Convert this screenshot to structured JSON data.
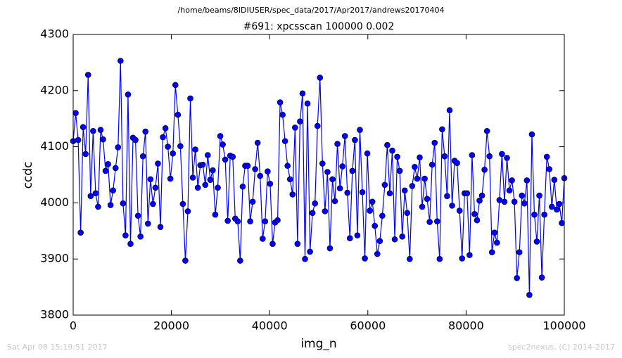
{
  "chart_data": {
    "type": "line",
    "title": "/home/beams/8IDIUSER/spec_data/2017/Apr2017/andrews20170404",
    "subtitle": "#691: xpcsscan 100000 0.002",
    "x_label": "img_n",
    "y_label": "ccdc",
    "footer_left": "Sat Apr 08 15:19:51 2017",
    "footer_right": "spec2nexus, (C) 2014-2017",
    "xlim": [
      0,
      100000
    ],
    "xticks": [
      0,
      20000,
      40000,
      60000,
      80000,
      100000
    ],
    "ylim": [
      3800,
      4300
    ],
    "yticks": [
      3800,
      3900,
      4000,
      4100,
      4200,
      4300
    ],
    "x": [
      0,
      508,
      1015,
      1523,
      2030,
      2538,
      3046,
      3553,
      4061,
      4569,
      5076,
      5584,
      6091,
      6599,
      7107,
      7614,
      8122,
      8629,
      9137,
      9645,
      10152,
      10660,
      11168,
      11675,
      12183,
      12690,
      13198,
      13706,
      14213,
      14721,
      15228,
      15736,
      16244,
      16751,
      17259,
      17766,
      18274,
      18782,
      19289,
      19797,
      20305,
      20812,
      21320,
      21827,
      22335,
      22843,
      23350,
      23858,
      24365,
      24873,
      25381,
      25888,
      26396,
      26904,
      27411,
      27919,
      28426,
      28934,
      29442,
      29949,
      30457,
      30964,
      31472,
      31980,
      32487,
      32995,
      33503,
      34010,
      34518,
      35025,
      35533,
      36041,
      36548,
      37056,
      37563,
      38071,
      38579,
      39086,
      39594,
      40102,
      40609,
      41117,
      41624,
      42132,
      42640,
      43147,
      43655,
      44162,
      44670,
      45178,
      45685,
      46193,
      46701,
      47208,
      47716,
      48223,
      48731,
      49239,
      49746,
      50254,
      50761,
      51269,
      51777,
      52284,
      52792,
      53299,
      53807,
      54315,
      54822,
      55330,
      55838,
      56345,
      56853,
      57360,
      57868,
      58376,
      58883,
      59391,
      59898,
      60406,
      60914,
      61421,
      61929,
      62437,
      62944,
      63452,
      63959,
      64467,
      64975,
      65482,
      65990,
      66497,
      67005,
      67513,
      68020,
      68528,
      69036,
      69543,
      70051,
      70558,
      71066,
      71574,
      72081,
      72589,
      73096,
      73604,
      74112,
      74619,
      75127,
      75635,
      76142,
      76650,
      77157,
      77665,
      78173,
      78680,
      79188,
      79695,
      80203,
      80711,
      81218,
      81726,
      82234,
      82741,
      83249,
      83756,
      84264,
      84772,
      85279,
      85787,
      86294,
      86802,
      87310,
      87817,
      88325,
      88832,
      89340,
      89848,
      90355,
      90863,
      91371,
      91878,
      92386,
      92893,
      93401,
      93909,
      94416,
      94924,
      95431,
      95939,
      96447,
      96954,
      97462,
      97970,
      98477,
      98985,
      99492,
      100000
    ],
    "series": [
      {
        "color": "#0000ff",
        "values": [
          4110,
          4160,
          4112,
          3947,
          4135,
          4087,
          4228,
          4012,
          4128,
          4017,
          3993,
          4130,
          4113,
          4057,
          4069,
          3996,
          4022,
          4062,
          4099,
          4253,
          3999,
          3942,
          4193,
          3927,
          4116,
          4112,
          3977,
          3940,
          4083,
          4127,
          3963,
          4042,
          3998,
          4027,
          4070,
          3957,
          4117,
          4133,
          4100,
          4043,
          4088,
          4210,
          4157,
          4101,
          3998,
          3897,
          3985,
          4186,
          4045,
          4095,
          4027,
          4067,
          4068,
          4032,
          4085,
          4041,
          4058,
          3979,
          4027,
          4119,
          4104,
          4077,
          3968,
          4084,
          4082,
          3972,
          3967,
          3897,
          4029,
          4066,
          4066,
          3967,
          4002,
          4060,
          4107,
          4048,
          3936,
          3967,
          4056,
          4034,
          3927,
          3965,
          3969,
          4179,
          4157,
          4110,
          4066,
          4042,
          4015,
          4134,
          3927,
          4145,
          4195,
          3900,
          4177,
          3913,
          3982,
          3999,
          4137,
          4223,
          4070,
          3985,
          4055,
          3919,
          4042,
          4003,
          4105,
          4026,
          4065,
          4119,
          4018,
          3937,
          4057,
          4112,
          3942,
          4130,
          4019,
          3901,
          4088,
          3986,
          4002,
          3959,
          3909,
          3932,
          3977,
          4032,
          4103,
          4017,
          4093,
          3935,
          4082,
          4057,
          3940,
          4022,
          3982,
          3900,
          4030,
          4064,
          4043,
          4081,
          3993,
          4043,
          4007,
          3966,
          4068,
          4107,
          3967,
          3900,
          4131,
          4083,
          4012,
          4165,
          3995,
          4075,
          4071,
          3986,
          3901,
          4017,
          4017,
          3907,
          4085,
          3980,
          3969,
          4004,
          4013,
          4059,
          4128,
          4083,
          3912,
          3947,
          3929,
          4005,
          4087,
          4002,
          4080,
          4022,
          4040,
          4002,
          3866,
          3912,
          4013,
          3999,
          4040,
          3836,
          4122,
          3979,
          3931,
          4013,
          3867,
          3979,
          4082,
          4060,
          3993,
          4041,
          3988,
          3998,
          3964,
          4044
        ]
      }
    ]
  }
}
